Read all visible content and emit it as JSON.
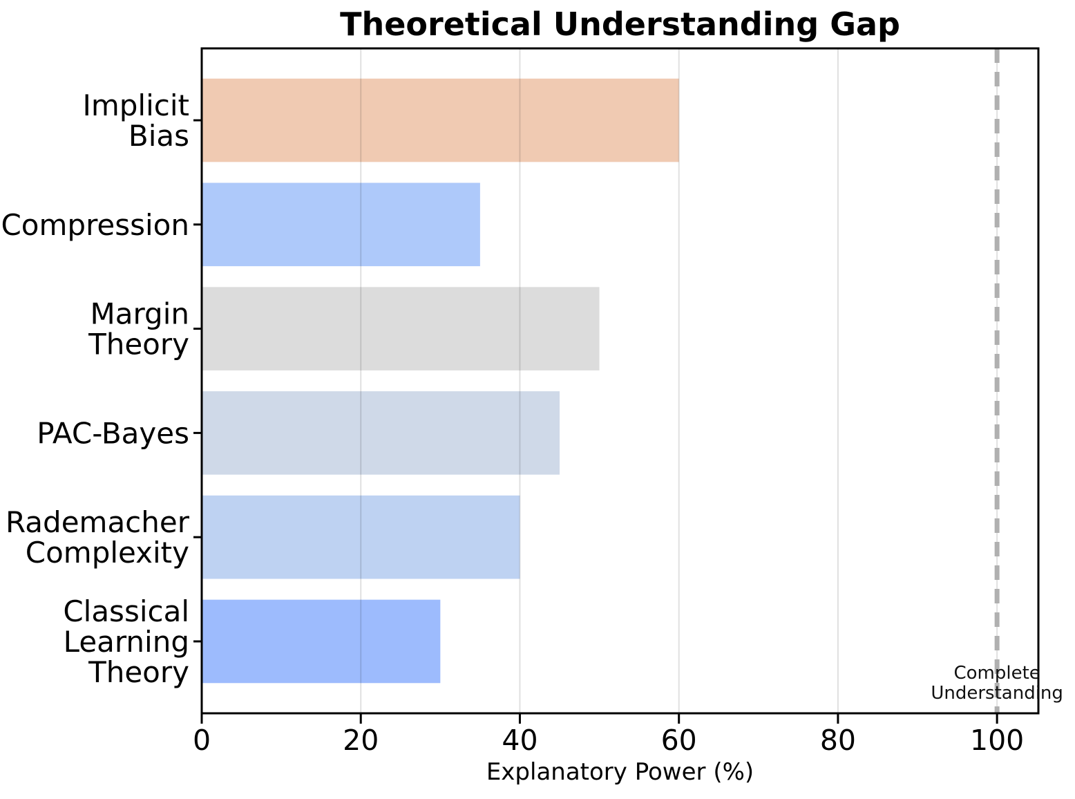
{
  "chart_data": {
    "type": "bar",
    "orientation": "horizontal",
    "title": "Theoretical Understanding Gap",
    "xlabel": "Explanatory Power (%)",
    "ylabel": "",
    "categories": [
      "Implicit\nBias",
      "Compression",
      "Margin\nTheory",
      "PAC-Bayes",
      "Rademacher\nComplexity",
      "Classical\nLearning\nTheory"
    ],
    "values": [
      60,
      35,
      50,
      45,
      40,
      30
    ],
    "bar_colors": [
      "#f0cab2",
      "#aec9fa",
      "#dcdcdc",
      "#cfd9e8",
      "#bed2f2",
      "#9dbbfd"
    ],
    "xlim": [
      0,
      105.2
    ],
    "xticks": [
      0,
      20,
      40,
      60,
      80,
      100
    ],
    "grid": true,
    "legend": "none",
    "background_color": "#ffffff",
    "axis_color": "#000000",
    "gridline_color": "rgba(0,0,0,0.12)",
    "reference_line": {
      "x": 100,
      "label": "Complete\nUnderstanding",
      "color": "#b0b0b0",
      "style": "dashed"
    }
  }
}
